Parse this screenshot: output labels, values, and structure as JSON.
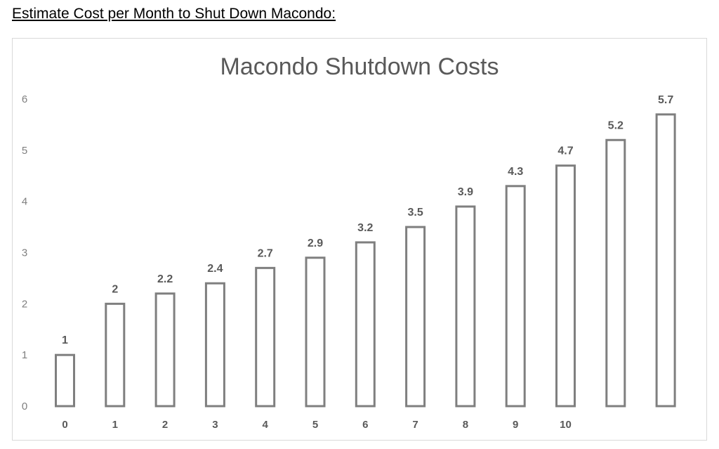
{
  "page": {
    "heading": "Estimate Cost per Month to Shut Down Macondo:"
  },
  "chart_data": {
    "type": "bar",
    "title": "Macondo Shutdown Costs",
    "categories": [
      "0",
      "1",
      "2",
      "3",
      "4",
      "5",
      "6",
      "7",
      "8",
      "9",
      "10",
      "",
      ""
    ],
    "values": [
      1,
      2,
      2.2,
      2.4,
      2.7,
      2.9,
      3.2,
      3.5,
      3.9,
      4.3,
      4.7,
      5.2,
      5.7
    ],
    "data_labels": [
      "1",
      "2",
      "2.2",
      "2.4",
      "2.7",
      "2.9",
      "3.2",
      "3.5",
      "3.9",
      "4.3",
      "4.7",
      "5.2",
      "5.7"
    ],
    "ylim": [
      0,
      6
    ],
    "yticks": [
      "0",
      "1",
      "2",
      "3",
      "4",
      "5",
      "6"
    ],
    "xlabel": "",
    "ylabel": "",
    "grid": false,
    "legend": "none",
    "bar_fill": "#ffffff",
    "bar_stroke": "#7f7f7f",
    "text_color": "#595959"
  }
}
